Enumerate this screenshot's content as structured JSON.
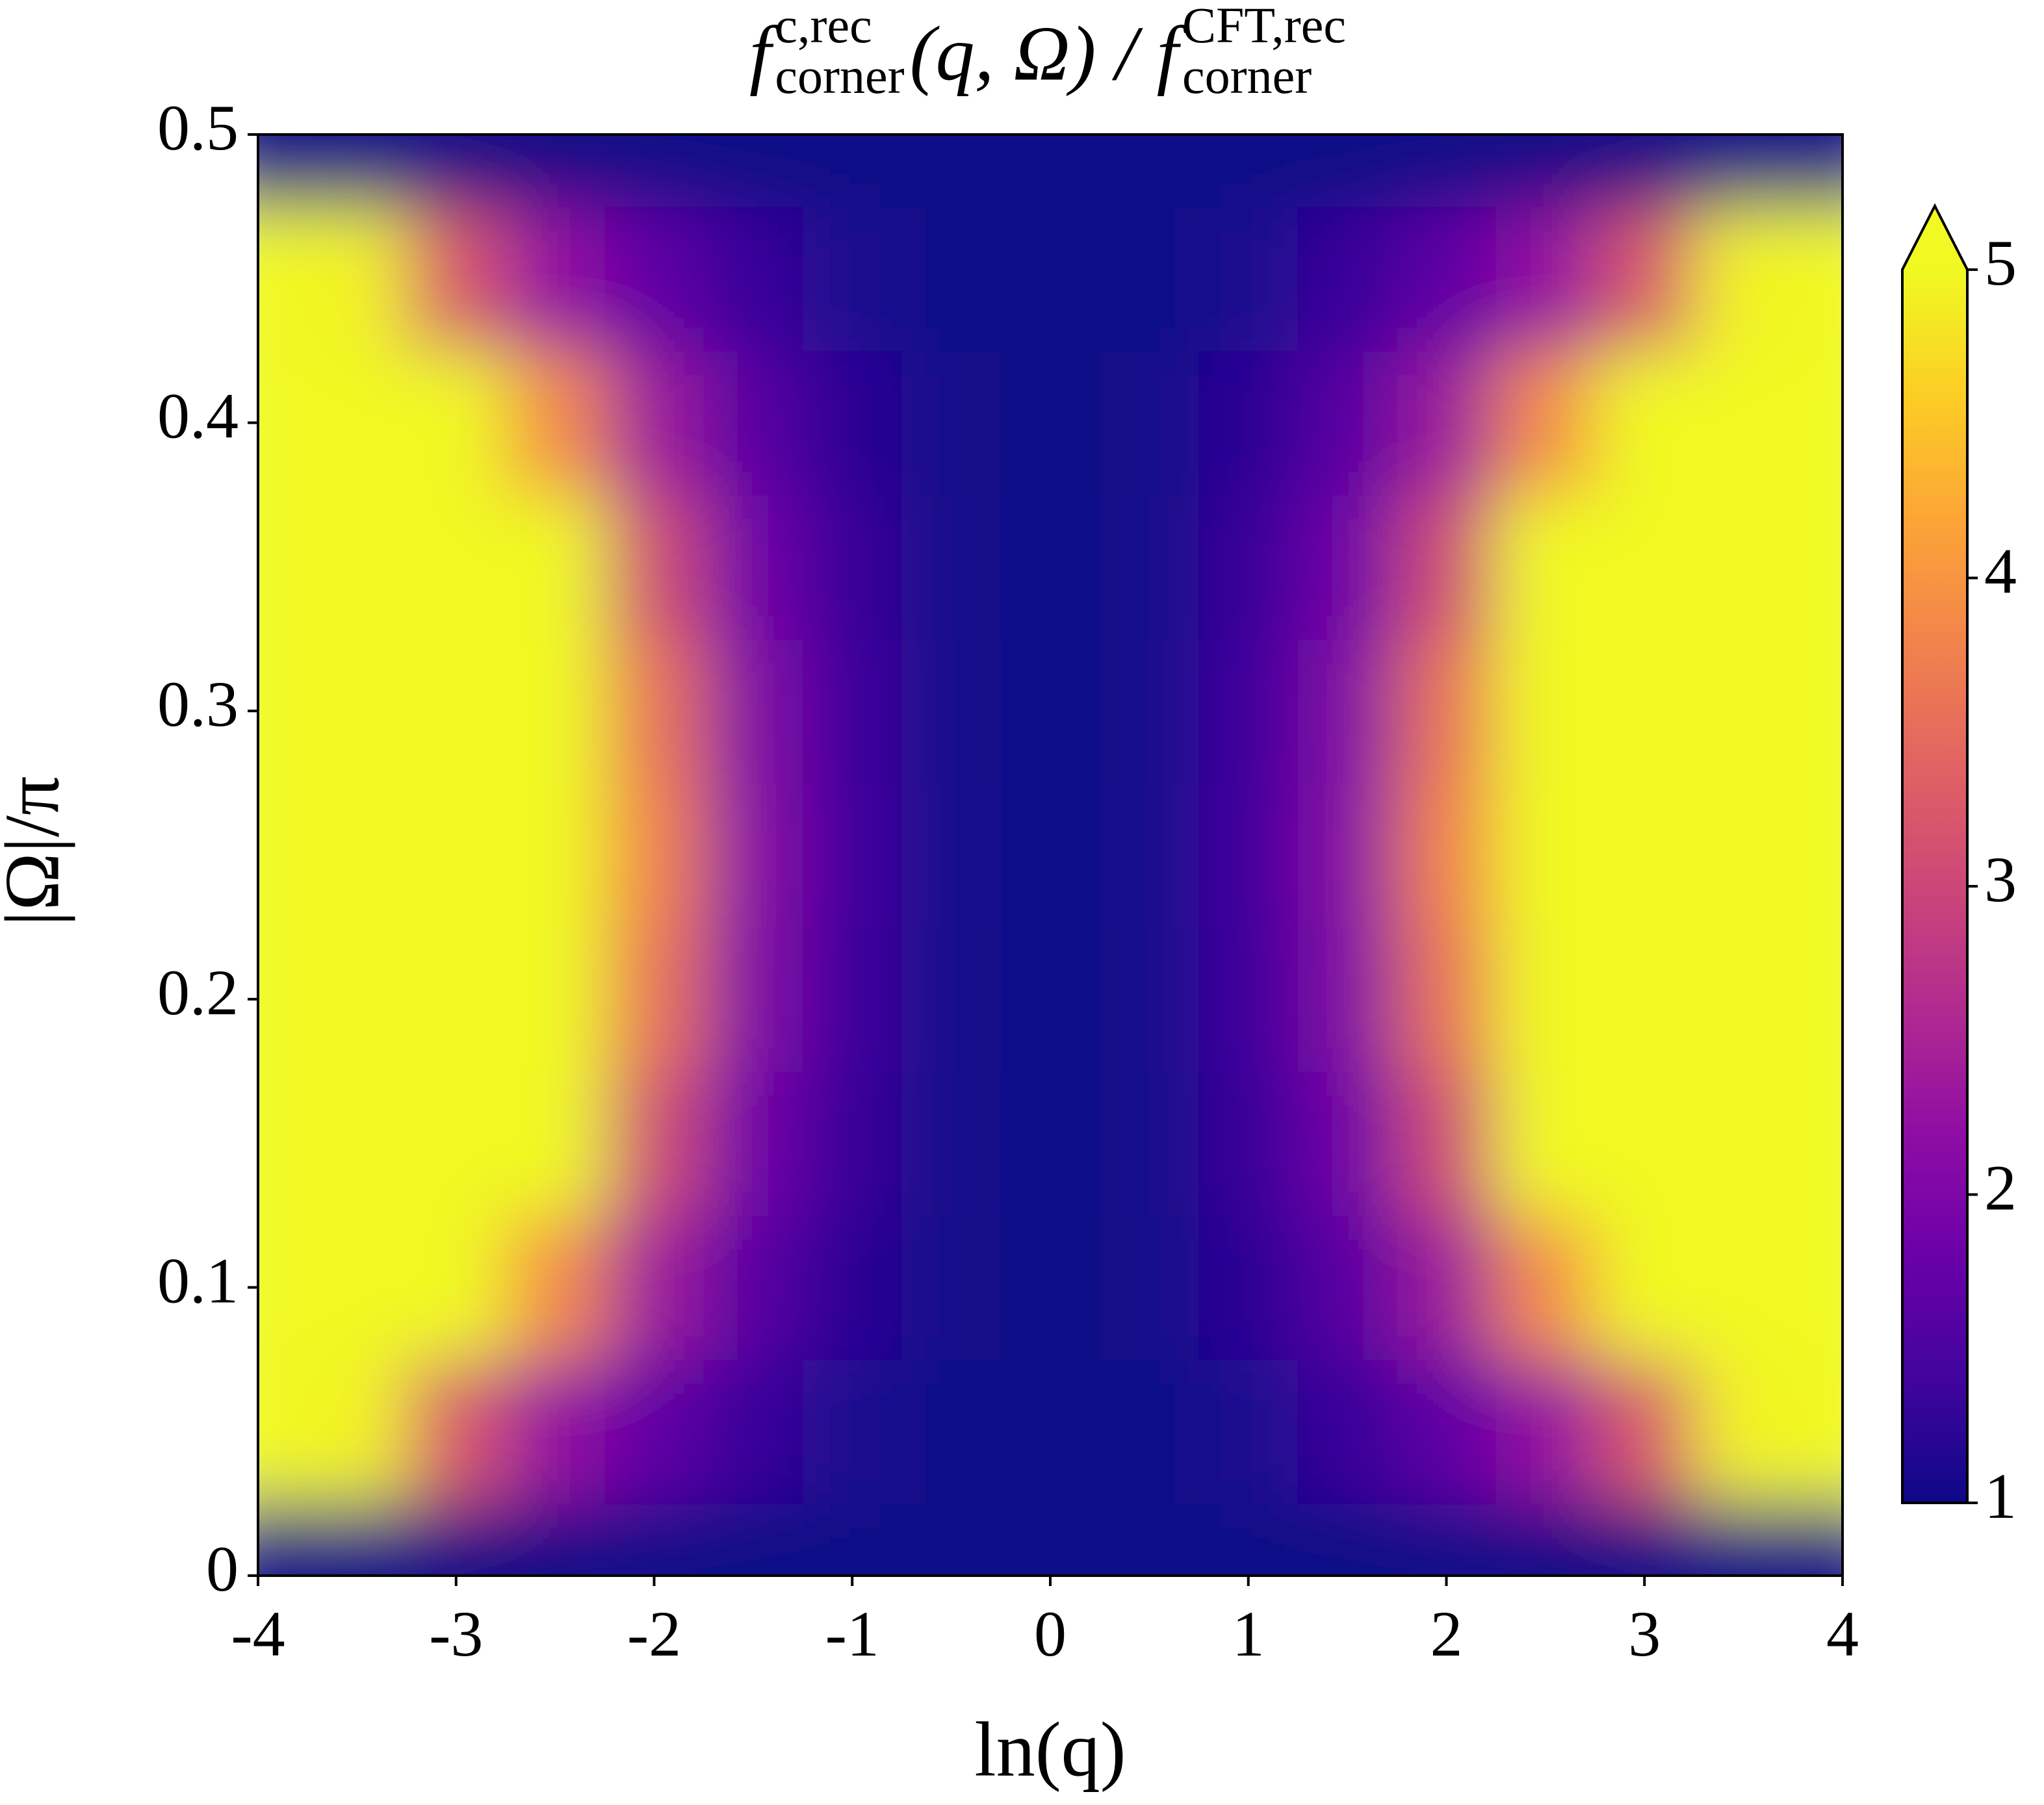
{
  "chart_data": {
    "type": "heatmap",
    "title": [
      "f",
      {
        "sup": "c,rec",
        "sub": "corner"
      },
      "(q, Ω) / f",
      {
        "sup": "CFT,rec",
        "sub": "corner"
      }
    ],
    "x_label": "ln(q)",
    "y_label": "|Ω|/π",
    "x": [
      -4,
      -3.5,
      -3,
      -2.5,
      -2,
      -1.5,
      -1,
      -0.5,
      0,
      0.5,
      1,
      1.5,
      2,
      2.5,
      3,
      3.5,
      4
    ],
    "y": [
      0,
      0.05,
      0.1,
      0.15,
      0.2,
      0.25,
      0.3,
      0.35,
      0.4,
      0.45,
      0.5
    ],
    "z": [
      [
        1,
        1,
        1,
        1,
        1,
        1,
        1,
        1,
        1,
        1,
        1,
        1,
        1,
        1,
        1,
        1,
        1
      ],
      [
        8.04,
        4.94,
        3.23,
        2.26,
        1.68,
        1.34,
        1.14,
        1.03,
        1,
        1.03,
        1.14,
        1.34,
        1.68,
        2.26,
        3.23,
        4.94,
        8.04
      ],
      [
        32.7,
        14.4,
        7.11,
        3.9,
        2.39,
        1.63,
        1.24,
        1.06,
        1,
        1.06,
        1.24,
        1.63,
        2.39,
        3.9,
        7.11,
        14.4,
        32.7
      ],
      [
        90.1,
        31.4,
        12.6,
        5.8,
        3.08,
        1.88,
        1.32,
        1.07,
        1,
        1.07,
        1.32,
        1.88,
        3.08,
        5.8,
        12.6,
        31.4,
        90.1
      ],
      [
        168,
        50.6,
        17.9,
        7.4,
        3.6,
        2.06,
        1.38,
        1.08,
        1,
        1.08,
        1.38,
        2.06,
        3.6,
        7.4,
        17.9,
        50.6,
        168
      ],
      [
        207,
        59.3,
        20.1,
        8.03,
        3.79,
        2.12,
        1.4,
        1.09,
        1,
        1.09,
        1.4,
        2.12,
        3.79,
        8.03,
        20.1,
        59.3,
        207
      ],
      [
        168,
        50.6,
        17.9,
        7.4,
        3.6,
        2.06,
        1.38,
        1.08,
        1,
        1.08,
        1.38,
        2.06,
        3.6,
        7.4,
        17.9,
        50.6,
        168
      ],
      [
        90.1,
        31.4,
        12.6,
        5.8,
        3.08,
        1.88,
        1.32,
        1.07,
        1,
        1.07,
        1.32,
        1.88,
        3.08,
        5.8,
        12.6,
        31.4,
        90.1
      ],
      [
        32.7,
        14.4,
        7.11,
        3.9,
        2.39,
        1.63,
        1.24,
        1.06,
        1,
        1.06,
        1.24,
        1.63,
        2.39,
        3.9,
        7.11,
        14.4,
        32.7
      ],
      [
        8.04,
        4.94,
        3.23,
        2.26,
        1.68,
        1.34,
        1.14,
        1.03,
        1,
        1.03,
        1.14,
        1.34,
        1.68,
        2.26,
        3.23,
        4.94,
        8.04
      ],
      [
        1,
        1,
        1,
        1,
        1,
        1,
        1,
        1,
        1,
        1,
        1,
        1,
        1,
        1,
        1,
        1,
        1
      ]
    ],
    "xlim": [
      -4,
      4
    ],
    "ylim": [
      0,
      0.5
    ],
    "xticks": [
      -4,
      -3,
      -2,
      -1,
      0,
      1,
      2,
      3,
      4
    ],
    "yticks": [
      0,
      0.1,
      0.2,
      0.3,
      0.4,
      0.5
    ],
    "colormap": "plasma",
    "clim": [
      1,
      5
    ],
    "cticks": [
      1,
      2,
      3,
      4,
      5
    ],
    "colorbar_extend": "max"
  }
}
